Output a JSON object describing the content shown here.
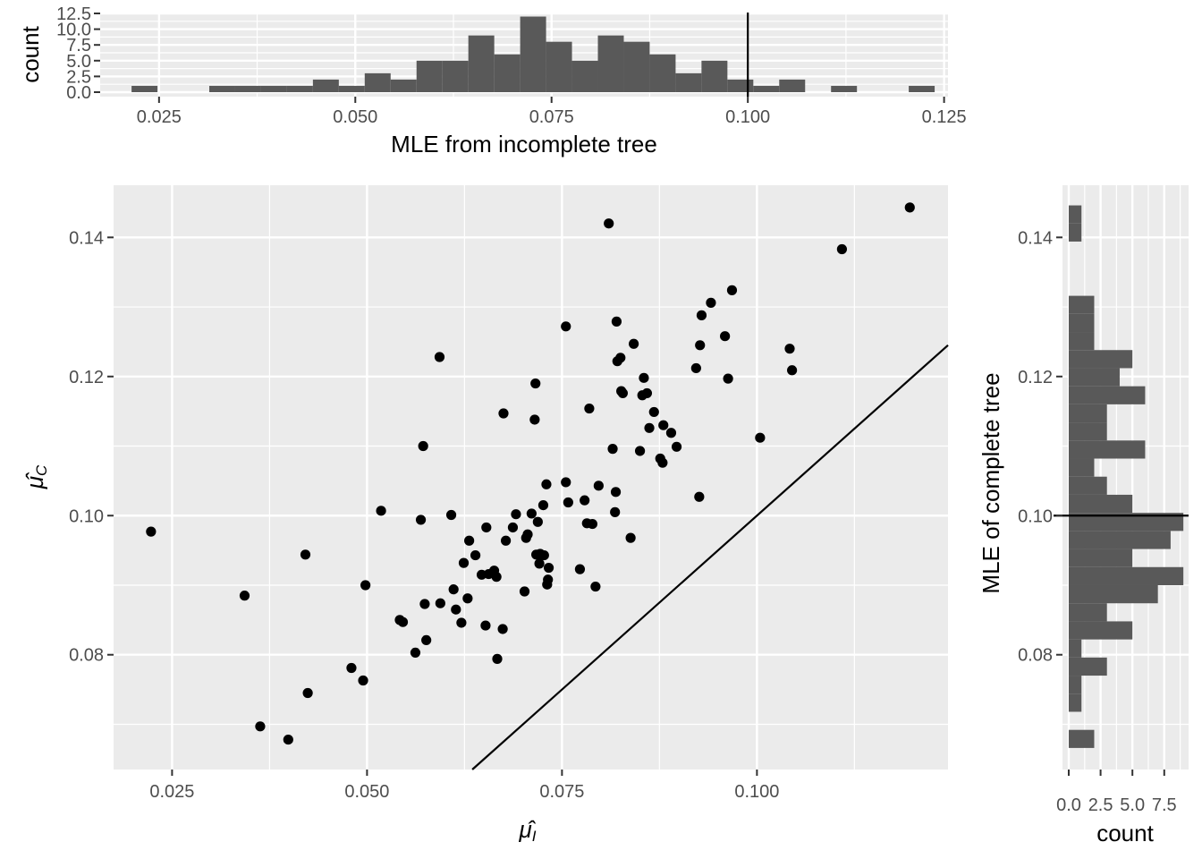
{
  "chart_data": [
    {
      "id": "top-histogram",
      "type": "bar",
      "xlabel": "MLE from incomplete tree",
      "ylabel": "count",
      "xlim": [
        0.0175,
        0.1255
      ],
      "ylim": [
        0,
        12.5
      ],
      "x_ticks": [
        "0.025",
        "0.050",
        "0.075",
        "0.100",
        "0.125"
      ],
      "x_tick_values": [
        0.025,
        0.05,
        0.075,
        0.1,
        0.125
      ],
      "y_ticks": [
        "0.0",
        "2.5",
        "5.0",
        "7.5",
        "10.0",
        "12.5"
      ],
      "y_tick_values": [
        0,
        2.5,
        5,
        7.5,
        10,
        12.5
      ],
      "bin_width": 0.0033,
      "bin_starts": [
        0.0215,
        0.0248,
        0.0281,
        0.0314,
        0.0347,
        0.038,
        0.0413,
        0.0446,
        0.0479,
        0.0512,
        0.0545,
        0.0578,
        0.0611,
        0.0644,
        0.0677,
        0.071,
        0.0743,
        0.0776,
        0.0809,
        0.0842,
        0.0875,
        0.0908,
        0.0941,
        0.0974,
        0.1007,
        0.104,
        0.1073,
        0.1106,
        0.1139,
        0.1172,
        0.1205
      ],
      "counts": [
        1,
        0,
        0,
        1,
        1,
        1,
        1,
        2,
        1,
        3,
        2,
        5,
        5,
        9,
        6,
        12,
        8,
        5,
        9,
        8,
        6,
        3,
        5,
        2,
        1,
        2,
        0,
        1,
        0,
        0,
        1
      ],
      "reference_line_x": 0.1,
      "grid": true
    },
    {
      "id": "main-scatter",
      "type": "scatter",
      "xlabel": "μ̂",
      "xlabel_sub": "I",
      "ylabel": "μ̂",
      "ylabel_sub": "C",
      "xlim": [
        0.0175,
        0.1245
      ],
      "ylim": [
        0.0635,
        0.1475
      ],
      "x_ticks": [
        "0.025",
        "0.050",
        "0.075",
        "0.100"
      ],
      "x_tick_values": [
        0.025,
        0.05,
        0.075,
        0.1
      ],
      "y_ticks": [
        "0.08",
        "0.10",
        "0.12",
        "0.14"
      ],
      "y_tick_values": [
        0.08,
        0.1,
        0.12,
        0.14
      ],
      "reference_line": "y = x",
      "grid": true,
      "points": [
        [
          0.0223,
          0.0977
        ],
        [
          0.0343,
          0.0885
        ],
        [
          0.0363,
          0.0697
        ],
        [
          0.0399,
          0.0678
        ],
        [
          0.0421,
          0.0944
        ],
        [
          0.0424,
          0.0745
        ],
        [
          0.048,
          0.0781
        ],
        [
          0.0495,
          0.0763
        ],
        [
          0.0498,
          0.09
        ],
        [
          0.0518,
          0.1007
        ],
        [
          0.0542,
          0.085
        ],
        [
          0.0546,
          0.0847
        ],
        [
          0.0562,
          0.0803
        ],
        [
          0.0569,
          0.0994
        ],
        [
          0.0572,
          0.11
        ],
        [
          0.0574,
          0.0873
        ],
        [
          0.0576,
          0.0821
        ],
        [
          0.0593,
          0.1228
        ],
        [
          0.0594,
          0.0874
        ],
        [
          0.0608,
          0.1001
        ],
        [
          0.0611,
          0.0894
        ],
        [
          0.0614,
          0.0865
        ],
        [
          0.0621,
          0.0846
        ],
        [
          0.0624,
          0.0932
        ],
        [
          0.0629,
          0.0881
        ],
        [
          0.0631,
          0.0964
        ],
        [
          0.0639,
          0.0943
        ],
        [
          0.0647,
          0.0915
        ],
        [
          0.0652,
          0.0842
        ],
        [
          0.0653,
          0.0983
        ],
        [
          0.0656,
          0.0916
        ],
        [
          0.0663,
          0.0921
        ],
        [
          0.0666,
          0.0912
        ],
        [
          0.0667,
          0.0794
        ],
        [
          0.0674,
          0.0837
        ],
        [
          0.0675,
          0.1147
        ],
        [
          0.0678,
          0.0964
        ],
        [
          0.0687,
          0.0983
        ],
        [
          0.0691,
          0.1002
        ],
        [
          0.0702,
          0.0891
        ],
        [
          0.0704,
          0.0968
        ],
        [
          0.0706,
          0.0973
        ],
        [
          0.0711,
          0.1003
        ],
        [
          0.0715,
          0.1138
        ],
        [
          0.0716,
          0.119
        ],
        [
          0.0717,
          0.0944
        ],
        [
          0.0719,
          0.0991
        ],
        [
          0.0721,
          0.0931
        ],
        [
          0.0722,
          0.0945
        ],
        [
          0.0726,
          0.1015
        ],
        [
          0.0727,
          0.0943
        ],
        [
          0.073,
          0.1045
        ],
        [
          0.0731,
          0.0901
        ],
        [
          0.0732,
          0.0908
        ],
        [
          0.0733,
          0.0925
        ],
        [
          0.0755,
          0.1272
        ],
        [
          0.0755,
          0.1048
        ],
        [
          0.0758,
          0.1019
        ],
        [
          0.0773,
          0.0923
        ],
        [
          0.0779,
          0.1022
        ],
        [
          0.0782,
          0.0989
        ],
        [
          0.0785,
          0.1154
        ],
        [
          0.0789,
          0.0988
        ],
        [
          0.0793,
          0.0898
        ],
        [
          0.0797,
          0.1043
        ],
        [
          0.081,
          0.142
        ],
        [
          0.0815,
          0.1096
        ],
        [
          0.0818,
          0.1005
        ],
        [
          0.0819,
          0.1034
        ],
        [
          0.082,
          0.1279
        ],
        [
          0.0821,
          0.1222
        ],
        [
          0.0825,
          0.1227
        ],
        [
          0.0826,
          0.1179
        ],
        [
          0.0828,
          0.1176
        ],
        [
          0.0838,
          0.0968
        ],
        [
          0.0842,
          0.1247
        ],
        [
          0.085,
          0.1093
        ],
        [
          0.0853,
          0.1173
        ],
        [
          0.0855,
          0.1198
        ],
        [
          0.0859,
          0.1176
        ],
        [
          0.0862,
          0.1126
        ],
        [
          0.0868,
          0.1149
        ],
        [
          0.0876,
          0.1082
        ],
        [
          0.0879,
          0.1076
        ],
        [
          0.088,
          0.113
        ],
        [
          0.089,
          0.1119
        ],
        [
          0.0897,
          0.1099
        ],
        [
          0.0922,
          0.1212
        ],
        [
          0.0926,
          0.1027
        ],
        [
          0.0927,
          0.1245
        ],
        [
          0.0929,
          0.1288
        ],
        [
          0.0941,
          0.1306
        ],
        [
          0.0959,
          0.1258
        ],
        [
          0.0963,
          0.1197
        ],
        [
          0.0968,
          0.1324
        ],
        [
          0.1004,
          0.1112
        ],
        [
          0.1042,
          0.124
        ],
        [
          0.1045,
          0.1209
        ],
        [
          0.1109,
          0.1383
        ],
        [
          0.1196,
          0.1443
        ]
      ]
    },
    {
      "id": "right-histogram",
      "type": "bar",
      "orientation": "horizontal",
      "xlabel": "count",
      "ylabel": "MLE of complete tree",
      "xlim": [
        0,
        9.2
      ],
      "ylim": [
        0.0635,
        0.1475
      ],
      "x_ticks": [
        "0.0",
        "2.5",
        "5.0",
        "7.5"
      ],
      "x_tick_values": [
        0,
        2.5,
        5,
        7.5
      ],
      "y_ticks": [
        "0.08",
        "0.10",
        "0.12",
        "0.14"
      ],
      "y_tick_values": [
        0.08,
        0.1,
        0.12,
        0.14
      ],
      "bin_width": 0.0026,
      "bin_starts": [
        0.0666,
        0.0692,
        0.0718,
        0.0744,
        0.077,
        0.0796,
        0.0822,
        0.0848,
        0.0874,
        0.09,
        0.0926,
        0.0952,
        0.0978,
        0.1004,
        0.103,
        0.1056,
        0.1082,
        0.1108,
        0.1134,
        0.116,
        0.1186,
        0.1212,
        0.1238,
        0.1264,
        0.129,
        0.1316,
        0.1342,
        0.1368,
        0.1394,
        0.142
      ],
      "counts": [
        2,
        0,
        1,
        1,
        3,
        1,
        5,
        3,
        7,
        9,
        5,
        8,
        9,
        5,
        3,
        2,
        6,
        3,
        3,
        6,
        4,
        5,
        2,
        2,
        2,
        0,
        0,
        0,
        1,
        1
      ],
      "reference_line_y": 0.1,
      "grid": true
    }
  ]
}
